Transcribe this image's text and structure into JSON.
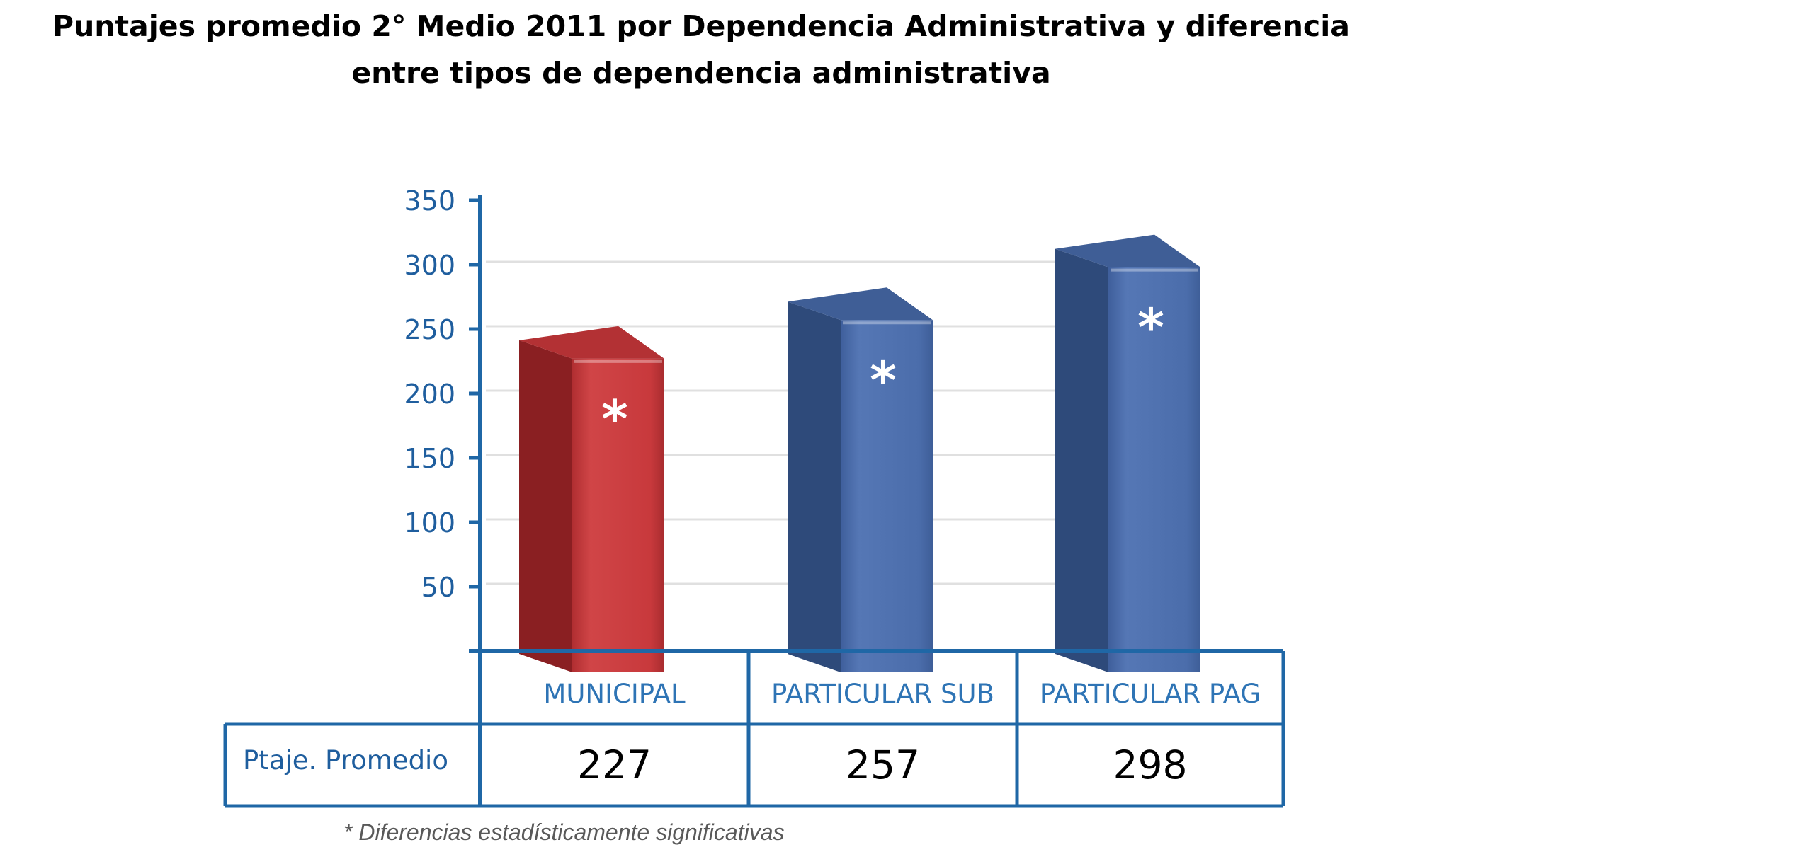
{
  "chart_data": {
    "type": "bar",
    "title": [
      "Puntajes promedio 2° Medio 2011 por Dependencia Administrativa y diferencia",
      "entre tipos de dependencia administrativa"
    ],
    "categories": [
      "MUNICIPAL",
      "PARTICULAR SUB",
      "PARTICULAR PAG"
    ],
    "series": [
      {
        "values": [
          227,
          257,
          298
        ],
        "colors": [
          "#C0393B",
          "#4A6CAA",
          "#4A6CAA"
        ]
      }
    ],
    "bar_markers": [
      "*",
      "*",
      "*"
    ],
    "ylim": [
      0,
      350
    ],
    "yticks": [
      50,
      100,
      150,
      200,
      250,
      300,
      350
    ],
    "grid": true,
    "table": {
      "row_label": "Ptaje. Promedio",
      "values": [
        "227",
        "257",
        "298"
      ]
    },
    "footnote": "* Diferencias estadísticamente significativas"
  },
  "colors": {
    "axis": "#1F67A6",
    "tick_label": "#1F5E9E",
    "category_label": "#2E74B5",
    "grid": "#E0E0E0",
    "marker": "#FFFFFF"
  }
}
